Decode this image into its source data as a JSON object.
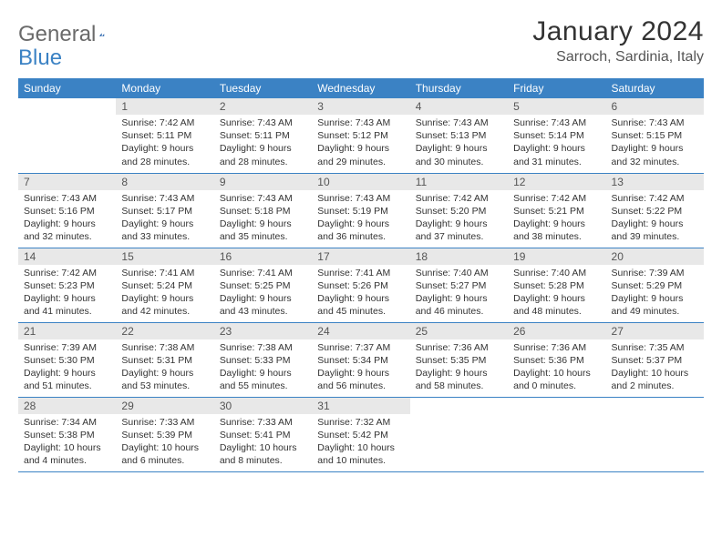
{
  "brand": {
    "part1": "General",
    "part2": "Blue",
    "logo_color": "#1a5aa8"
  },
  "title": "January 2024",
  "subtitle": "Sarroch, Sardinia, Italy",
  "colors": {
    "header_bg": "#3b82c4",
    "header_fg": "#ffffff",
    "daynum_bg": "#e8e8e8",
    "border": "#3b82c4"
  },
  "day_headers": [
    "Sunday",
    "Monday",
    "Tuesday",
    "Wednesday",
    "Thursday",
    "Friday",
    "Saturday"
  ],
  "weeks": [
    [
      {
        "n": "",
        "lines": []
      },
      {
        "n": "1",
        "lines": [
          "Sunrise: 7:42 AM",
          "Sunset: 5:11 PM",
          "Daylight: 9 hours",
          "and 28 minutes."
        ]
      },
      {
        "n": "2",
        "lines": [
          "Sunrise: 7:43 AM",
          "Sunset: 5:11 PM",
          "Daylight: 9 hours",
          "and 28 minutes."
        ]
      },
      {
        "n": "3",
        "lines": [
          "Sunrise: 7:43 AM",
          "Sunset: 5:12 PM",
          "Daylight: 9 hours",
          "and 29 minutes."
        ]
      },
      {
        "n": "4",
        "lines": [
          "Sunrise: 7:43 AM",
          "Sunset: 5:13 PM",
          "Daylight: 9 hours",
          "and 30 minutes."
        ]
      },
      {
        "n": "5",
        "lines": [
          "Sunrise: 7:43 AM",
          "Sunset: 5:14 PM",
          "Daylight: 9 hours",
          "and 31 minutes."
        ]
      },
      {
        "n": "6",
        "lines": [
          "Sunrise: 7:43 AM",
          "Sunset: 5:15 PM",
          "Daylight: 9 hours",
          "and 32 minutes."
        ]
      }
    ],
    [
      {
        "n": "7",
        "lines": [
          "Sunrise: 7:43 AM",
          "Sunset: 5:16 PM",
          "Daylight: 9 hours",
          "and 32 minutes."
        ]
      },
      {
        "n": "8",
        "lines": [
          "Sunrise: 7:43 AM",
          "Sunset: 5:17 PM",
          "Daylight: 9 hours",
          "and 33 minutes."
        ]
      },
      {
        "n": "9",
        "lines": [
          "Sunrise: 7:43 AM",
          "Sunset: 5:18 PM",
          "Daylight: 9 hours",
          "and 35 minutes."
        ]
      },
      {
        "n": "10",
        "lines": [
          "Sunrise: 7:43 AM",
          "Sunset: 5:19 PM",
          "Daylight: 9 hours",
          "and 36 minutes."
        ]
      },
      {
        "n": "11",
        "lines": [
          "Sunrise: 7:42 AM",
          "Sunset: 5:20 PM",
          "Daylight: 9 hours",
          "and 37 minutes."
        ]
      },
      {
        "n": "12",
        "lines": [
          "Sunrise: 7:42 AM",
          "Sunset: 5:21 PM",
          "Daylight: 9 hours",
          "and 38 minutes."
        ]
      },
      {
        "n": "13",
        "lines": [
          "Sunrise: 7:42 AM",
          "Sunset: 5:22 PM",
          "Daylight: 9 hours",
          "and 39 minutes."
        ]
      }
    ],
    [
      {
        "n": "14",
        "lines": [
          "Sunrise: 7:42 AM",
          "Sunset: 5:23 PM",
          "Daylight: 9 hours",
          "and 41 minutes."
        ]
      },
      {
        "n": "15",
        "lines": [
          "Sunrise: 7:41 AM",
          "Sunset: 5:24 PM",
          "Daylight: 9 hours",
          "and 42 minutes."
        ]
      },
      {
        "n": "16",
        "lines": [
          "Sunrise: 7:41 AM",
          "Sunset: 5:25 PM",
          "Daylight: 9 hours",
          "and 43 minutes."
        ]
      },
      {
        "n": "17",
        "lines": [
          "Sunrise: 7:41 AM",
          "Sunset: 5:26 PM",
          "Daylight: 9 hours",
          "and 45 minutes."
        ]
      },
      {
        "n": "18",
        "lines": [
          "Sunrise: 7:40 AM",
          "Sunset: 5:27 PM",
          "Daylight: 9 hours",
          "and 46 minutes."
        ]
      },
      {
        "n": "19",
        "lines": [
          "Sunrise: 7:40 AM",
          "Sunset: 5:28 PM",
          "Daylight: 9 hours",
          "and 48 minutes."
        ]
      },
      {
        "n": "20",
        "lines": [
          "Sunrise: 7:39 AM",
          "Sunset: 5:29 PM",
          "Daylight: 9 hours",
          "and 49 minutes."
        ]
      }
    ],
    [
      {
        "n": "21",
        "lines": [
          "Sunrise: 7:39 AM",
          "Sunset: 5:30 PM",
          "Daylight: 9 hours",
          "and 51 minutes."
        ]
      },
      {
        "n": "22",
        "lines": [
          "Sunrise: 7:38 AM",
          "Sunset: 5:31 PM",
          "Daylight: 9 hours",
          "and 53 minutes."
        ]
      },
      {
        "n": "23",
        "lines": [
          "Sunrise: 7:38 AM",
          "Sunset: 5:33 PM",
          "Daylight: 9 hours",
          "and 55 minutes."
        ]
      },
      {
        "n": "24",
        "lines": [
          "Sunrise: 7:37 AM",
          "Sunset: 5:34 PM",
          "Daylight: 9 hours",
          "and 56 minutes."
        ]
      },
      {
        "n": "25",
        "lines": [
          "Sunrise: 7:36 AM",
          "Sunset: 5:35 PM",
          "Daylight: 9 hours",
          "and 58 minutes."
        ]
      },
      {
        "n": "26",
        "lines": [
          "Sunrise: 7:36 AM",
          "Sunset: 5:36 PM",
          "Daylight: 10 hours",
          "and 0 minutes."
        ]
      },
      {
        "n": "27",
        "lines": [
          "Sunrise: 7:35 AM",
          "Sunset: 5:37 PM",
          "Daylight: 10 hours",
          "and 2 minutes."
        ]
      }
    ],
    [
      {
        "n": "28",
        "lines": [
          "Sunrise: 7:34 AM",
          "Sunset: 5:38 PM",
          "Daylight: 10 hours",
          "and 4 minutes."
        ]
      },
      {
        "n": "29",
        "lines": [
          "Sunrise: 7:33 AM",
          "Sunset: 5:39 PM",
          "Daylight: 10 hours",
          "and 6 minutes."
        ]
      },
      {
        "n": "30",
        "lines": [
          "Sunrise: 7:33 AM",
          "Sunset: 5:41 PM",
          "Daylight: 10 hours",
          "and 8 minutes."
        ]
      },
      {
        "n": "31",
        "lines": [
          "Sunrise: 7:32 AM",
          "Sunset: 5:42 PM",
          "Daylight: 10 hours",
          "and 10 minutes."
        ]
      },
      {
        "n": "",
        "lines": []
      },
      {
        "n": "",
        "lines": []
      },
      {
        "n": "",
        "lines": []
      }
    ]
  ]
}
